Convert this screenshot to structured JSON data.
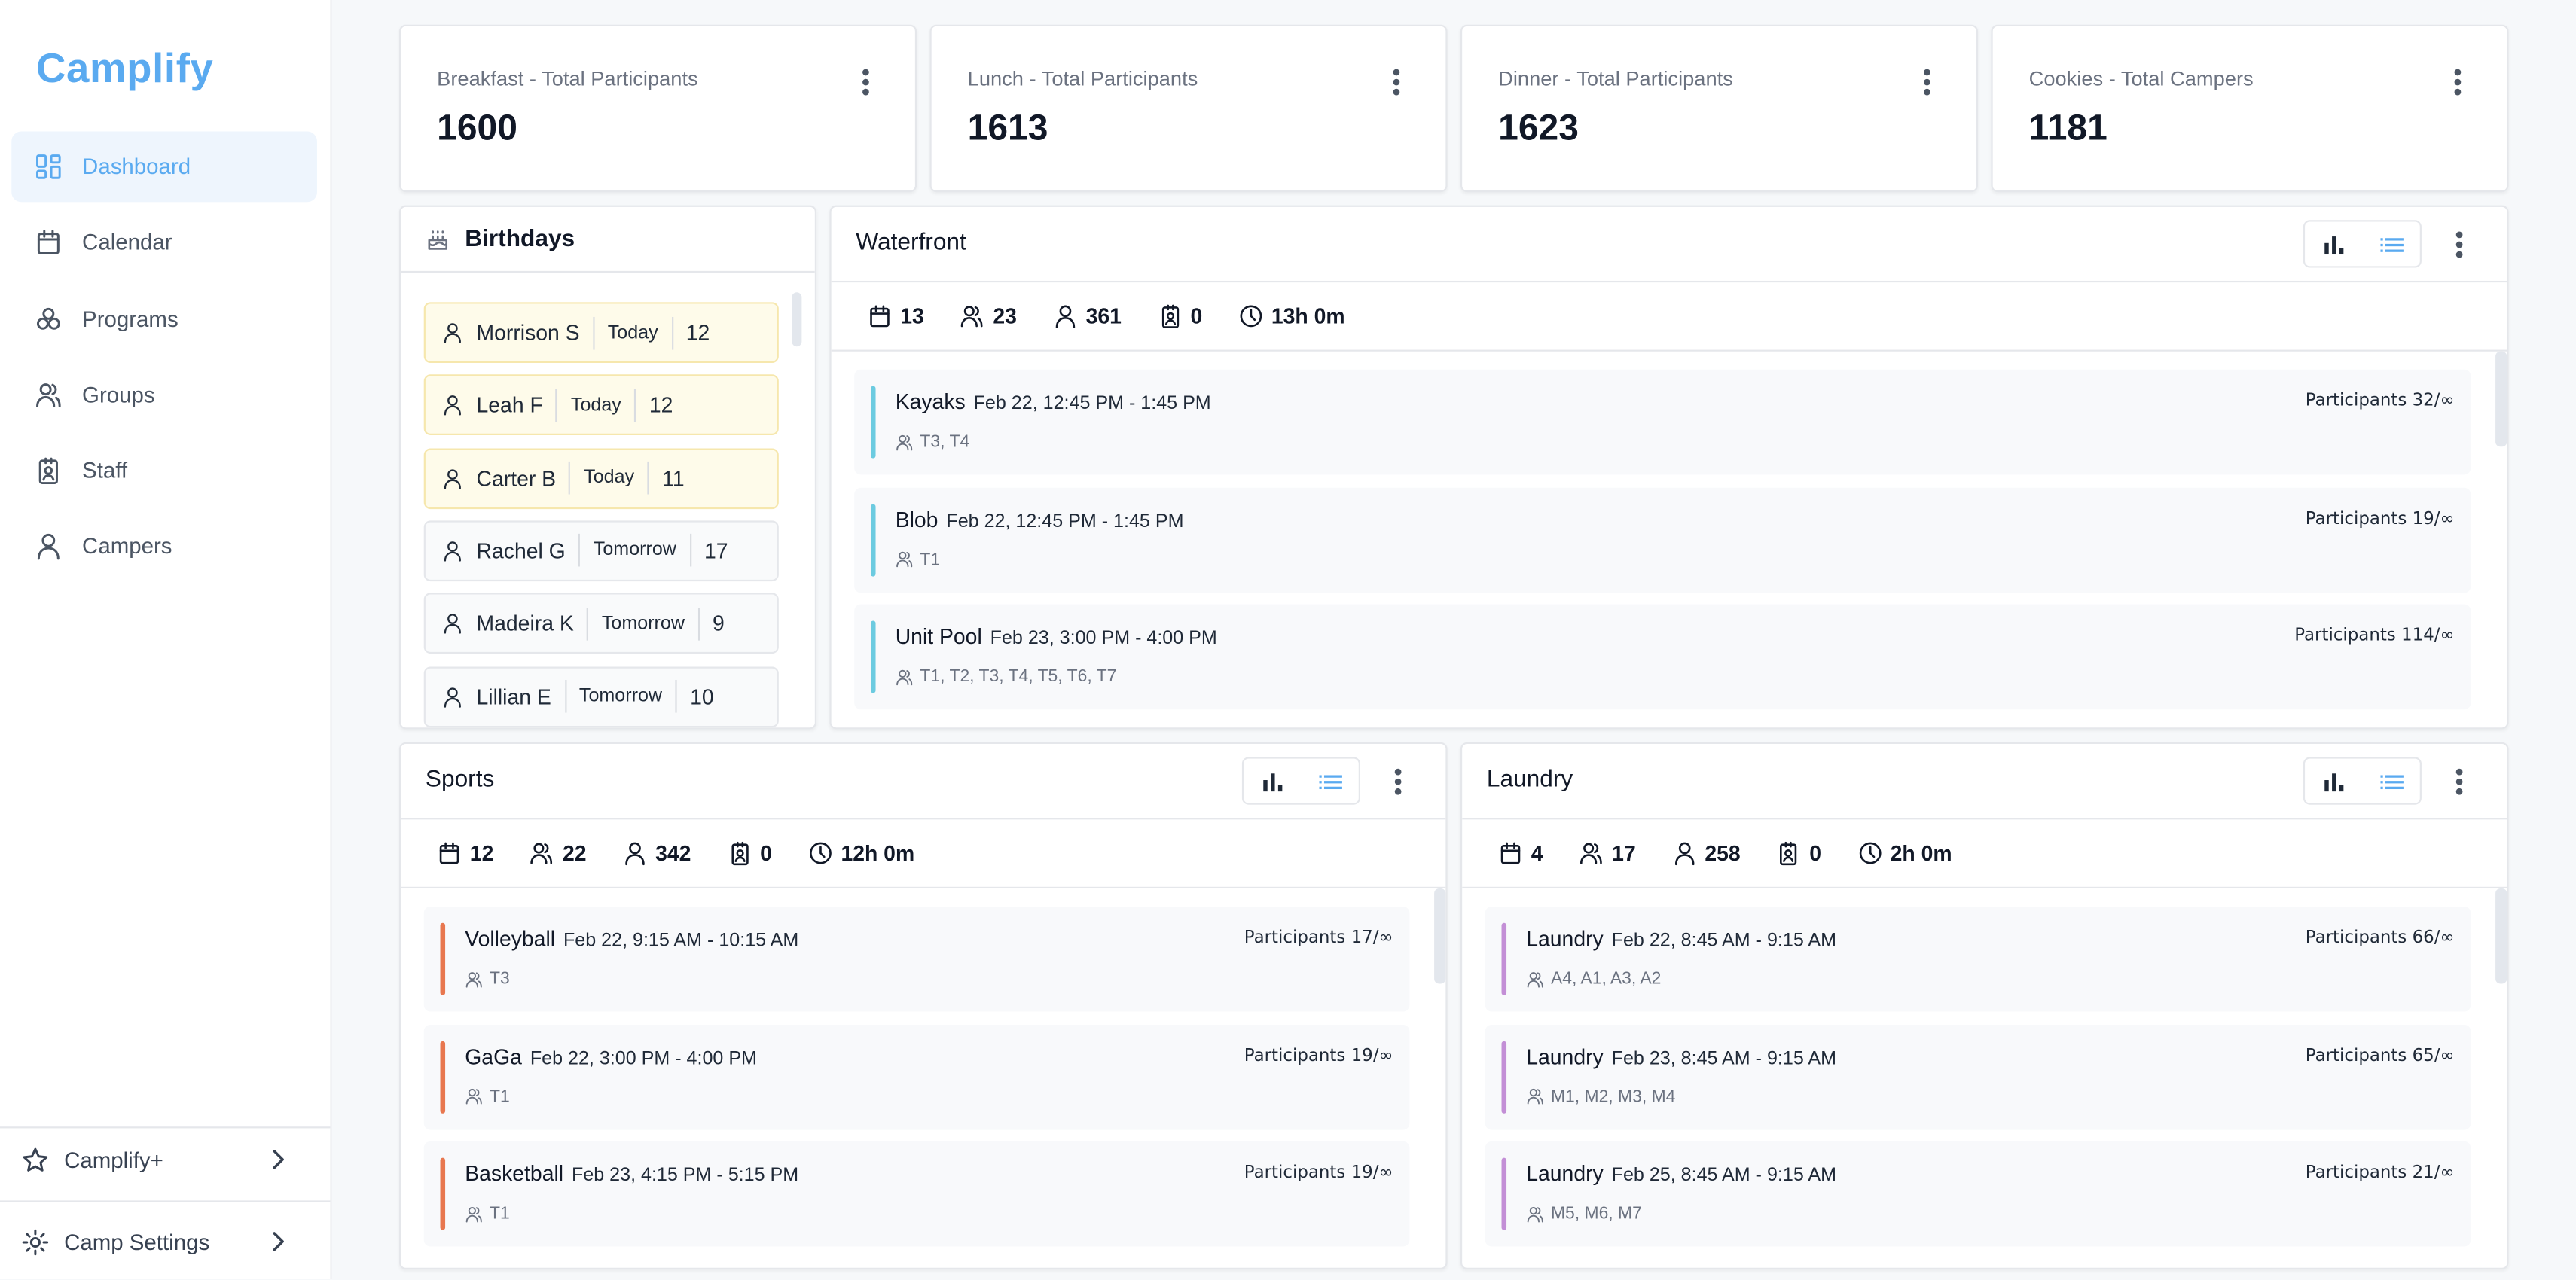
{
  "app": {
    "logo": "Camplify",
    "brand_color": "#5aaaf0"
  },
  "sidebar": {
    "items": [
      {
        "label": "Dashboard",
        "icon": "dashboard-icon",
        "active": true
      },
      {
        "label": "Calendar",
        "icon": "calendar-icon"
      },
      {
        "label": "Programs",
        "icon": "programs-icon"
      },
      {
        "label": "Groups",
        "icon": "groups-icon"
      },
      {
        "label": "Staff",
        "icon": "staff-badge-icon"
      },
      {
        "label": "Campers",
        "icon": "user-icon"
      }
    ],
    "bottom": [
      {
        "label": "Camplify+",
        "icon": "star-icon"
      },
      {
        "label": "Camp Settings",
        "icon": "gear-icon"
      }
    ]
  },
  "stats": [
    {
      "label": "Breakfast - Total Participants",
      "value": "1600"
    },
    {
      "label": "Lunch - Total Participants",
      "value": "1613"
    },
    {
      "label": "Dinner - Total Participants",
      "value": "1623"
    },
    {
      "label": "Cookies - Total Campers",
      "value": "1181"
    }
  ],
  "birthdays": {
    "title": "Birthdays",
    "items": [
      {
        "name": "Morrison S",
        "when": "Today",
        "age": "12"
      },
      {
        "name": "Leah F",
        "when": "Today",
        "age": "12"
      },
      {
        "name": "Carter B",
        "when": "Today",
        "age": "11"
      },
      {
        "name": "Rachel G",
        "when": "Tomorrow",
        "age": "17"
      },
      {
        "name": "Madeira K",
        "when": "Tomorrow",
        "age": "9"
      },
      {
        "name": "Lillian E",
        "when": "Tomorrow",
        "age": "10"
      }
    ]
  },
  "panels": [
    {
      "title": "Waterfront",
      "color": "#6ccbe0",
      "stats": {
        "programs": "13",
        "groups": "23",
        "campers": "361",
        "staff": "0",
        "duration": "13h 0m"
      },
      "events": [
        {
          "name": "Kayaks",
          "time": "Feb 22, 12:45 PM - 1:45 PM",
          "groups": "T3, T4",
          "participants": "Participants 32/∞"
        },
        {
          "name": "Blob",
          "time": "Feb 22, 12:45 PM - 1:45 PM",
          "groups": "T1",
          "participants": "Participants 19/∞"
        },
        {
          "name": "Unit Pool",
          "time": "Feb 23, 3:00 PM - 4:00 PM",
          "groups": "T1, T2, T3, T4, T5, T6, T7",
          "participants": "Participants 114/∞"
        }
      ]
    },
    {
      "title": "Sports",
      "color": "#e8774f",
      "stats": {
        "programs": "12",
        "groups": "22",
        "campers": "342",
        "staff": "0",
        "duration": "12h 0m"
      },
      "events": [
        {
          "name": "Volleyball",
          "time": "Feb 22, 9:15 AM - 10:15 AM",
          "groups": "T3",
          "participants": "Participants 17/∞"
        },
        {
          "name": "GaGa",
          "time": "Feb 22, 3:00 PM - 4:00 PM",
          "groups": "T1",
          "participants": "Participants 19/∞"
        },
        {
          "name": "Basketball",
          "time": "Feb 23, 4:15 PM - 5:15 PM",
          "groups": "T1",
          "participants": "Participants 19/∞"
        }
      ]
    },
    {
      "title": "Laundry",
      "color": "#c38fd6",
      "stats": {
        "programs": "4",
        "groups": "17",
        "campers": "258",
        "staff": "0",
        "duration": "2h 0m"
      },
      "events": [
        {
          "name": "Laundry",
          "time": "Feb 22, 8:45 AM - 9:15 AM",
          "groups": "A4, A1, A3, A2",
          "participants": "Participants 66/∞"
        },
        {
          "name": "Laundry",
          "time": "Feb 23, 8:45 AM - 9:15 AM",
          "groups": "M1, M2, M3, M4",
          "participants": "Participants 65/∞"
        },
        {
          "name": "Laundry",
          "time": "Feb 25, 8:45 AM - 9:15 AM",
          "groups": "M5, M6, M7",
          "participants": "Participants 21/∞"
        }
      ]
    }
  ]
}
